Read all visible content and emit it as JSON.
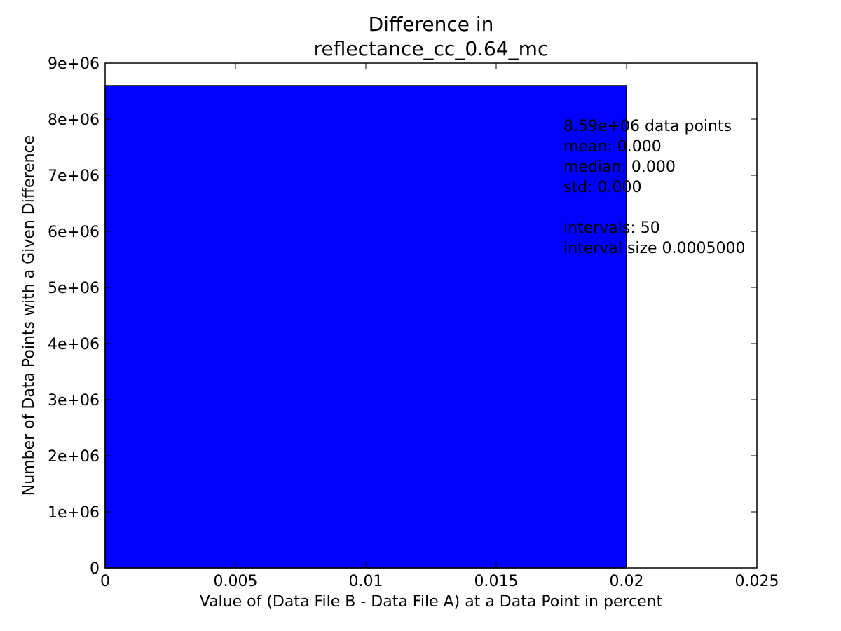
{
  "chart_data": {
    "type": "bar",
    "title": [
      "Difference in",
      "reflectance_cc_0.64_mc"
    ],
    "xlabel": "Value of (Data File B - Data File A) at a Data Point in percent",
    "ylabel": "Number of Data Points with a Given Difference",
    "xlim": [
      0,
      0.025
    ],
    "ylim": [
      0,
      9000000
    ],
    "xticks": [
      0,
      0.005,
      0.01,
      0.015,
      0.02,
      0.025
    ],
    "xtick_labels": [
      "0",
      "0.005",
      "0.01",
      "0.015",
      "0.02",
      "0.025"
    ],
    "yticks": [
      0,
      1000000,
      2000000,
      3000000,
      4000000,
      5000000,
      6000000,
      7000000,
      8000000,
      9000000
    ],
    "ytick_labels": [
      "0",
      "1e+06",
      "2e+06",
      "3e+06",
      "4e+06",
      "5e+06",
      "6e+06",
      "7e+06",
      "8e+06",
      "9e+06"
    ],
    "bars": [
      {
        "x0": 0,
        "x1": 0.02,
        "value": 8600000
      }
    ],
    "bar_color": "#0000ff",
    "annotation": [
      "8.59e+06 data points",
      "mean: 0.000",
      "median: 0.000",
      "std: 0.000",
      "",
      "intervals: 50",
      "interval size 0.0005000"
    ],
    "grid": false
  }
}
